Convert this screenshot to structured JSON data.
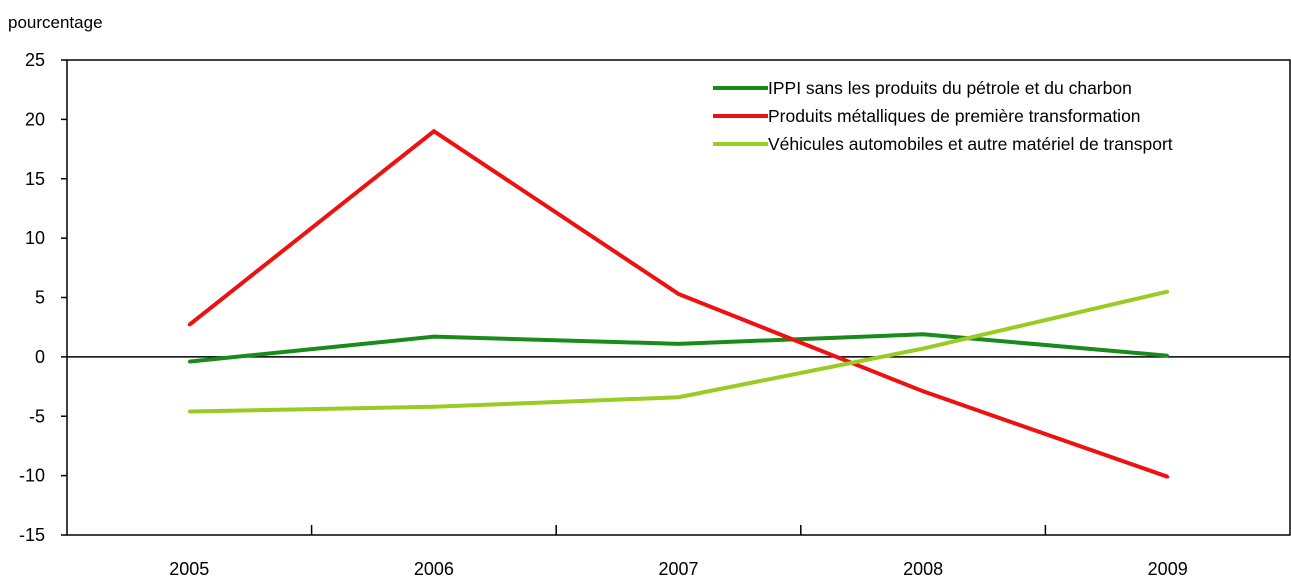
{
  "chart_data": {
    "type": "line",
    "title": "",
    "ylabel": "pourcentage",
    "xlabel": "",
    "categories": [
      "2005",
      "2006",
      "2007",
      "2008",
      "2009"
    ],
    "ylim": [
      -15,
      25
    ],
    "yticks": [
      25,
      20,
      15,
      10,
      5,
      0,
      -5,
      -10,
      -15
    ],
    "ytick_labels": [
      "25",
      "20",
      "15",
      "10",
      "5",
      "0",
      "-5",
      "-10",
      "-15"
    ],
    "grid": false,
    "legend_position": "top-right",
    "series": [
      {
        "name": "IPPI sans les produits du pétrole et du charbon",
        "color": "#1a8a1a",
        "values": [
          -0.4,
          1.7,
          1.1,
          1.9,
          0.1
        ]
      },
      {
        "name": "Produits métalliques de première transformation",
        "color": "#ee1111",
        "values": [
          2.7,
          19.0,
          5.3,
          -2.9,
          -10.1
        ]
      },
      {
        "name": "Véhicules automobiles et autre matériel de transport",
        "color": "#99cc22",
        "values": [
          -4.6,
          -4.2,
          -3.4,
          0.7,
          5.5
        ]
      }
    ]
  }
}
